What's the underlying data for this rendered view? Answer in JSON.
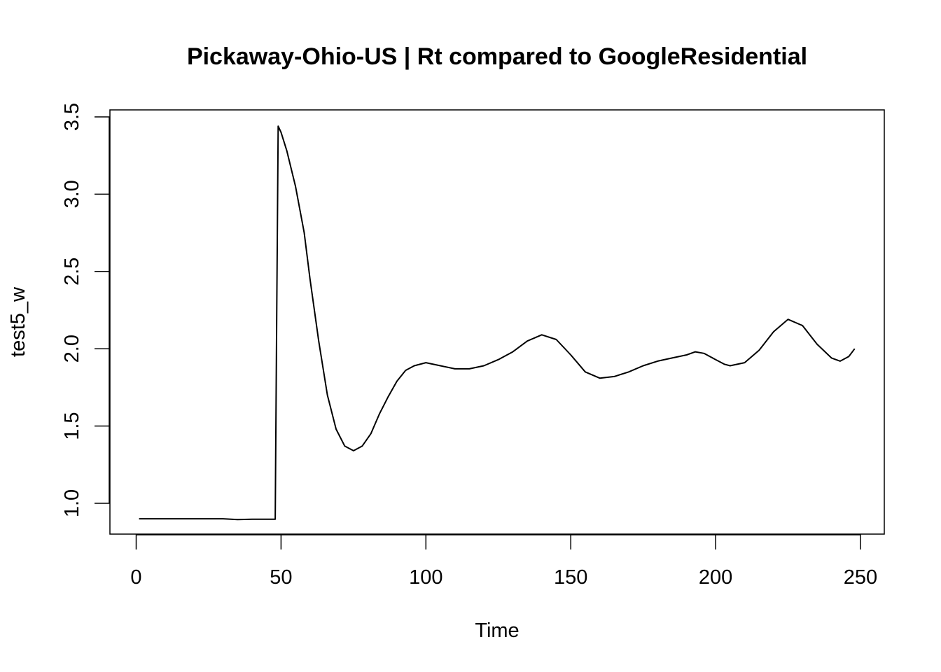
{
  "chart_data": {
    "type": "line",
    "title": "Pickaway-Ohio-US | Rt compared to GoogleResidential",
    "xlabel": "Time",
    "ylabel": "test5_w",
    "xlim": [
      0,
      250
    ],
    "ylim": [
      0.9,
      3.45
    ],
    "x_ticks": [
      0,
      50,
      100,
      150,
      200,
      250
    ],
    "y_ticks": [
      1.0,
      1.5,
      2.0,
      2.5,
      3.0,
      3.5
    ],
    "x_tick_labels": [
      "0",
      "50",
      "100",
      "150",
      "200",
      "250"
    ],
    "y_tick_labels": [
      "1.0",
      "1.5",
      "2.0",
      "2.5",
      "3.0",
      "3.5"
    ],
    "grid": false,
    "legend": "none",
    "line_color": "#000000",
    "series": [
      {
        "x": [
          1,
          10,
          20,
          30,
          35,
          40,
          45,
          48,
          48.5,
          49,
          50,
          52,
          55,
          58,
          60,
          63,
          66,
          69,
          72,
          75,
          78,
          81,
          84,
          87,
          90,
          93,
          96,
          100,
          105,
          110,
          115,
          120,
          125,
          130,
          135,
          140,
          145,
          150,
          155,
          160,
          165,
          170,
          175,
          180,
          185,
          190,
          193,
          196,
          200,
          203,
          205,
          210,
          215,
          220,
          225,
          230,
          235,
          240,
          243,
          246,
          248
        ],
        "y": [
          0.9,
          0.9,
          0.9,
          0.9,
          0.895,
          0.897,
          0.897,
          0.897,
          2.2,
          3.44,
          3.4,
          3.28,
          3.05,
          2.75,
          2.45,
          2.05,
          1.7,
          1.48,
          1.37,
          1.34,
          1.37,
          1.45,
          1.58,
          1.69,
          1.79,
          1.86,
          1.89,
          1.91,
          1.89,
          1.87,
          1.87,
          1.89,
          1.93,
          1.98,
          2.05,
          2.09,
          2.06,
          1.96,
          1.85,
          1.81,
          1.82,
          1.85,
          1.89,
          1.92,
          1.94,
          1.96,
          1.98,
          1.97,
          1.93,
          1.9,
          1.89,
          1.91,
          1.99,
          2.11,
          2.19,
          2.15,
          2.03,
          1.94,
          1.92,
          1.95,
          2.0
        ]
      }
    ]
  }
}
